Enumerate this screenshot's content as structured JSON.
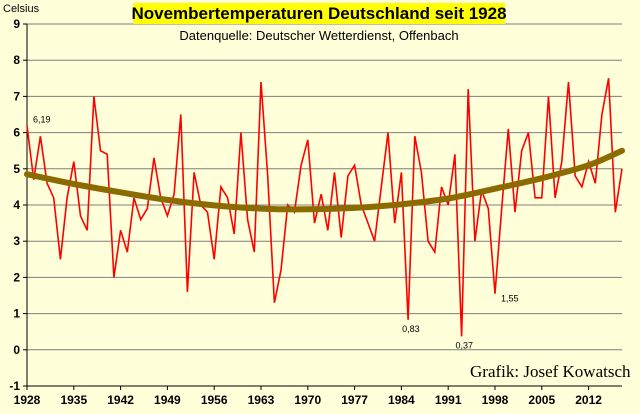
{
  "chart_data": {
    "type": "line",
    "title": "Novembertemperaturen Deutschland seit 1928",
    "subtitle": "Datenquelle: Deutscher Wetterdienst, Offenbach",
    "ylabel": "Celsius",
    "xlabel": "",
    "credit": "Grafik: Josef Kowatsch",
    "ylim": [
      -1,
      9
    ],
    "yticks": [
      "9",
      "8",
      "7",
      "6",
      "5",
      "4",
      "3",
      "2",
      "1",
      "0",
      "-1"
    ],
    "xlim": [
      1928,
      2017
    ],
    "xticks": [
      "1928",
      "1935",
      "1942",
      "1949",
      "1956",
      "1963",
      "1970",
      "1977",
      "1984",
      "1991",
      "1998",
      "2005",
      "2012"
    ],
    "grid": true,
    "colors": {
      "series": "#FF0000",
      "trend": "#8B6B00",
      "title_bg": "#FFFF00",
      "background": "#FFFFD9"
    },
    "series": [
      {
        "years": [
          1928,
          1929,
          1930,
          1931,
          1932,
          1933,
          1934,
          1935,
          1936,
          1937,
          1938,
          1939,
          1940,
          1941,
          1942,
          1943,
          1944,
          1945,
          1946,
          1947,
          1948,
          1949,
          1950,
          1951,
          1952,
          1953,
          1954,
          1955,
          1956,
          1957,
          1958,
          1959,
          1960,
          1961,
          1962,
          1963,
          1964,
          1965,
          1966,
          1967,
          1968,
          1969,
          1970,
          1971,
          1972,
          1973,
          1974,
          1975,
          1976,
          1977,
          1978,
          1979,
          1980,
          1981,
          1982,
          1983,
          1984,
          1985,
          1986,
          1987,
          1988,
          1989,
          1990,
          1991,
          1992,
          1993,
          1994,
          1995,
          1996,
          1997,
          1998,
          1999,
          2000,
          2001,
          2002,
          2003,
          2004,
          2005,
          2006,
          2007,
          2008,
          2009,
          2010,
          2011,
          2012,
          2013,
          2014,
          2015,
          2016,
          2017
        ],
        "values": [
          6.19,
          4.7,
          5.9,
          4.6,
          4.2,
          2.5,
          4.2,
          5.2,
          3.7,
          3.3,
          7.0,
          5.5,
          5.4,
          2.0,
          3.3,
          2.7,
          4.2,
          3.6,
          3.9,
          5.3,
          4.2,
          3.7,
          4.3,
          6.5,
          1.6,
          4.9,
          4.0,
          3.8,
          2.5,
          4.5,
          4.2,
          3.2,
          6.0,
          3.6,
          2.7,
          7.4,
          4.8,
          1.3,
          2.2,
          4.0,
          3.8,
          5.1,
          5.8,
          3.5,
          4.3,
          3.3,
          4.9,
          3.1,
          4.8,
          5.1,
          4.0,
          3.5,
          3.0,
          4.5,
          6.0,
          3.5,
          4.9,
          0.83,
          5.9,
          4.9,
          3.0,
          2.7,
          4.5,
          4.0,
          5.4,
          0.37,
          7.2,
          3.0,
          4.4,
          3.9,
          1.55,
          3.9,
          6.1,
          3.8,
          5.5,
          6.0,
          4.2,
          4.2,
          7.0,
          4.2,
          5.2,
          7.4,
          4.8,
          4.5,
          5.2,
          4.6,
          6.5,
          7.5,
          3.8,
          5.0
        ]
      },
      {
        "trend_years": [
          1928,
          1935,
          1942,
          1949,
          1956,
          1963,
          1970,
          1977,
          1984,
          1991,
          1998,
          2005,
          2012,
          2017
        ],
        "trend_values": [
          4.85,
          4.58,
          4.35,
          4.14,
          3.99,
          3.9,
          3.88,
          3.92,
          4.02,
          4.18,
          4.45,
          4.74,
          5.1,
          5.5
        ]
      }
    ],
    "annotations": [
      {
        "year": 1928,
        "value": 6.19,
        "label": "6,19"
      },
      {
        "year": 1985,
        "value": 0.83,
        "label": "0,83"
      },
      {
        "year": 1993,
        "value": 0.37,
        "label": "0,37"
      },
      {
        "year": 1998,
        "value": 1.55,
        "label": "1,55"
      }
    ]
  }
}
